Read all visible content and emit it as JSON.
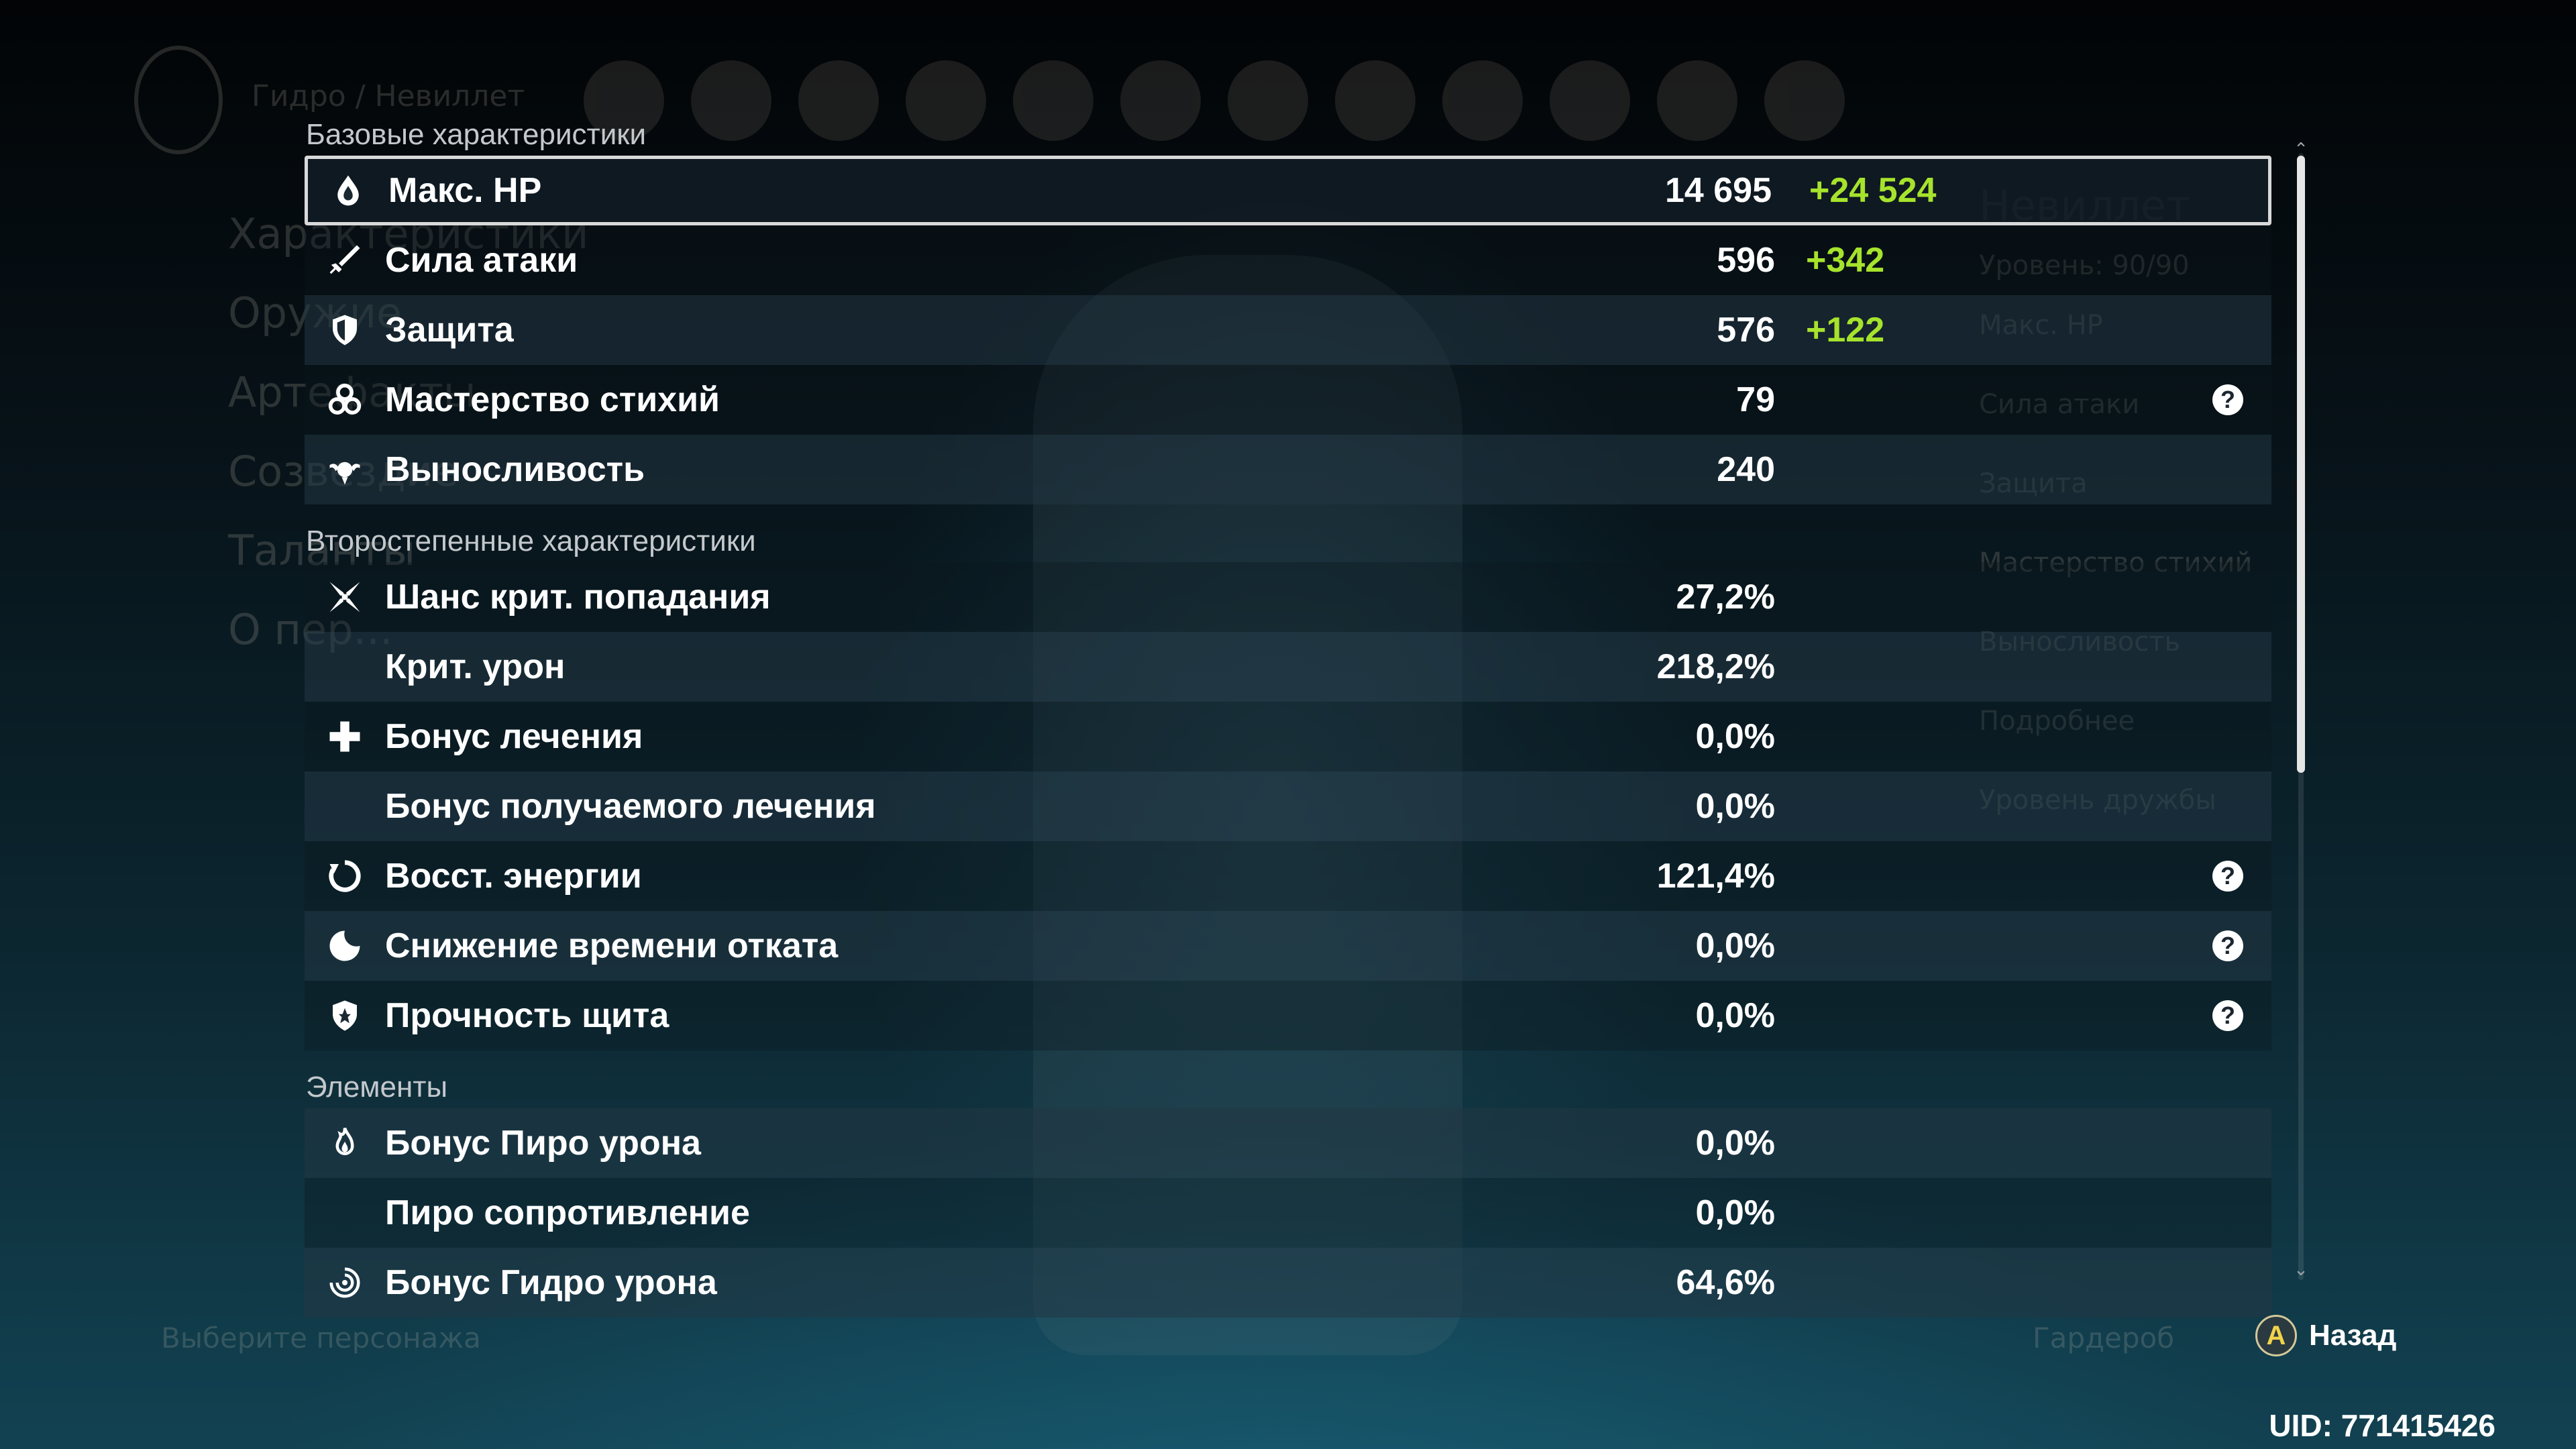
{
  "background": {
    "breadcrumb": "Гидро / Невиллет",
    "menu": [
      "Характеристики",
      "Оружие",
      "Артефакты",
      "Созвездие",
      "Таланты",
      "О пер..."
    ],
    "char_name": "Невиллет",
    "char_level": "Уровень: 90/90",
    "side_stats": [
      "Макс. HP",
      "Сила атаки",
      "Защита",
      "Мастерство стихий",
      "Выносливость"
    ],
    "details": "Подробнее",
    "friendship": "Уровень дружбы",
    "hint": "Выберите персонажа",
    "wardrobe": "Гардероб"
  },
  "sections": [
    {
      "title": "Базовые характеристики",
      "rows": [
        {
          "icon": "hp-drop-icon",
          "label": "Макс. HP",
          "value": "14 695",
          "bonus": "+24 524",
          "help": false,
          "selected": true
        },
        {
          "icon": "sword-icon",
          "label": "Сила атаки",
          "value": "596",
          "bonus": "+342",
          "help": false
        },
        {
          "icon": "shield-icon",
          "label": "Защита",
          "value": "576",
          "bonus": "+122",
          "help": false
        },
        {
          "icon": "elemental-mastery-icon",
          "label": "Мастерство стихий",
          "value": "79",
          "bonus": "",
          "help": true
        },
        {
          "icon": "stamina-icon",
          "label": "Выносливость",
          "value": "240",
          "bonus": "",
          "help": false
        }
      ]
    },
    {
      "title": "Второстепенные характеристики",
      "rows": [
        {
          "icon": "crit-icon",
          "label": "Шанс крит. попадания",
          "value": "27,2%",
          "bonus": "",
          "help": false
        },
        {
          "icon": "",
          "label": "Крит. урон",
          "value": "218,2%",
          "bonus": "",
          "help": false
        },
        {
          "icon": "healing-cross-icon",
          "label": "Бонус лечения",
          "value": "0,0%",
          "bonus": "",
          "help": false
        },
        {
          "icon": "",
          "label": "Бонус получаемого лечения",
          "value": "0,0%",
          "bonus": "",
          "help": false
        },
        {
          "icon": "energy-recharge-icon",
          "label": "Восст. энергии",
          "value": "121,4%",
          "bonus": "",
          "help": true
        },
        {
          "icon": "cooldown-icon",
          "label": "Снижение времени отката",
          "value": "0,0%",
          "bonus": "",
          "help": true
        },
        {
          "icon": "shield-strength-icon",
          "label": "Прочность щита",
          "value": "0,0%",
          "bonus": "",
          "help": true
        }
      ]
    },
    {
      "title": "Элементы",
      "rows": [
        {
          "icon": "pyro-icon",
          "label": "Бонус Пиро урона",
          "value": "0,0%",
          "bonus": "",
          "help": false
        },
        {
          "icon": "",
          "label": "Пиро сопротивление",
          "value": "0,0%",
          "bonus": "",
          "help": false
        },
        {
          "icon": "hydro-icon",
          "label": "Бонус Гидро урона",
          "value": "64,6%",
          "bonus": "",
          "help": false
        }
      ]
    }
  ],
  "help_glyph": "?",
  "footer": {
    "button_key": "A",
    "back_label": "Назад",
    "uid": "UID: 771415426"
  },
  "colors": {
    "bonus": "#a6e32c",
    "text": "#ffffff",
    "section_title": "#c3c8cc",
    "selected_border": "#d9d9d9"
  }
}
